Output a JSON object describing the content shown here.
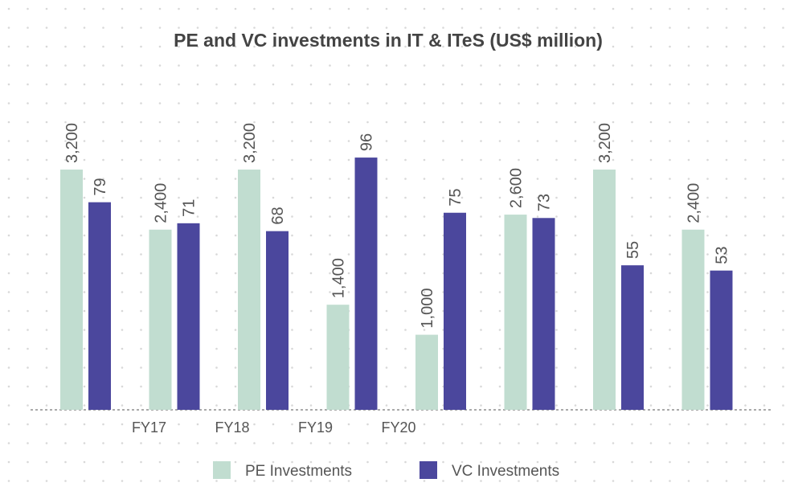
{
  "chart_data": {
    "type": "bar",
    "title": "PE and VC investments in IT & ITeS (US$ million)",
    "categories": [
      null,
      "FY17",
      "FY18",
      "FY19",
      "FY20",
      null,
      null,
      null
    ],
    "series": [
      {
        "name": "PE Investments",
        "color": "#c1ddd0",
        "values": [
          3200,
          2400,
          3200,
          1400,
          1000,
          2600,
          3200,
          2400
        ],
        "value_labels": [
          "3,200",
          "2,400",
          "3,200",
          "1,400",
          "1,000",
          "2,600",
          "3,200",
          "2,400"
        ]
      },
      {
        "name": "VC Investments",
        "color": "#4b479d",
        "axis": "y2",
        "values": [
          79,
          71,
          68,
          96,
          75,
          73,
          55,
          53
        ]
      }
    ],
    "ylim": [
      0,
      3500
    ],
    "y2lim": [
      0,
      100
    ],
    "legend": "bottom"
  }
}
